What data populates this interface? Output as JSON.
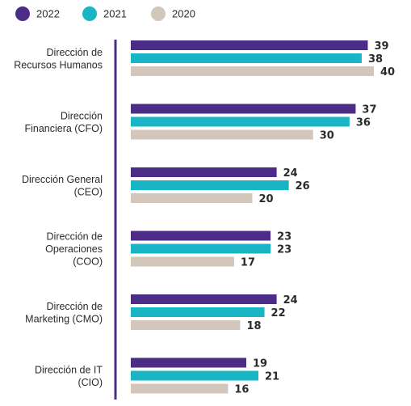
{
  "chart_data": {
    "type": "bar",
    "orientation": "horizontal",
    "categories": [
      [
        "Dirección de",
        "Recursos Humanos"
      ],
      [
        "Dirección",
        "Financiera (CFO)"
      ],
      [
        "Dirección General",
        "(CEO)"
      ],
      [
        "Dirección de",
        "Operaciones",
        "(COO)"
      ],
      [
        "Dirección de",
        "Marketing (CMO)"
      ],
      [
        "Dirección de IT",
        "(CIO)"
      ]
    ],
    "series": [
      {
        "name": "2022",
        "color": "#4b2c86",
        "values": [
          39,
          37,
          24,
          23,
          24,
          19
        ]
      },
      {
        "name": "2021",
        "color": "#19b5c4",
        "values": [
          38,
          36,
          26,
          23,
          22,
          21
        ]
      },
      {
        "name": "2020",
        "color": "#d3c7bb",
        "values": [
          40,
          30,
          20,
          17,
          18,
          16
        ]
      }
    ],
    "xlim": [
      0,
      40
    ],
    "axis_line_color": "#4b2c86",
    "legend_position": "top-left",
    "grid": false,
    "title": "",
    "xlabel": "",
    "ylabel": ""
  }
}
